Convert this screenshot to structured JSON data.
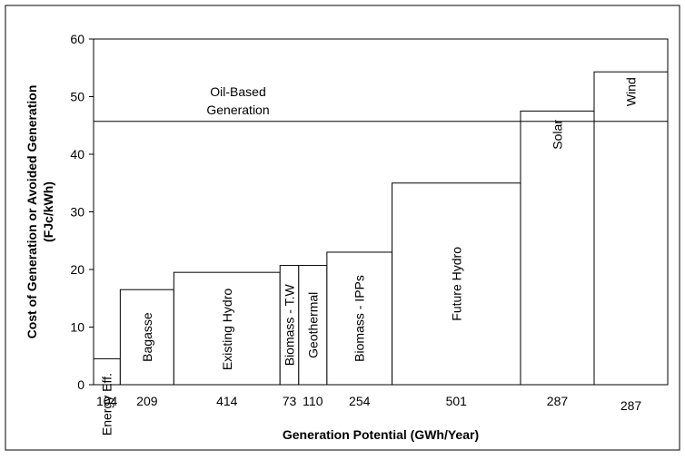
{
  "chart_data": {
    "type": "bar",
    "xlabel": "Generation Potential (GWh/Year)",
    "ylabel_line1": "Cost of Generation or Avoided Generation",
    "ylabel_line2": "(FJc/kWh)",
    "ylim": [
      0,
      60
    ],
    "yticks": [
      0,
      10,
      20,
      30,
      40,
      50,
      60
    ],
    "grid": false,
    "legend": "none",
    "bars": [
      {
        "label": "Energy Eff.",
        "width_gwh": 104,
        "value": 4.5,
        "width_label": "104"
      },
      {
        "label": "Bagasse",
        "width_gwh": 209,
        "value": 16.5,
        "width_label": "209"
      },
      {
        "label": "Existing Hydro",
        "width_gwh": 414,
        "value": 19.5,
        "width_label": "414"
      },
      {
        "label": "Biomass - T.W",
        "width_gwh": 73,
        "value": 20.7,
        "width_label": "73"
      },
      {
        "label": "Geothermal",
        "width_gwh": 110,
        "value": 20.7,
        "width_label": "110"
      },
      {
        "label": "Biomass - IPPs",
        "width_gwh": 254,
        "value": 23.0,
        "width_label": "254"
      },
      {
        "label": "Future Hydro",
        "width_gwh": 501,
        "value": 35.0,
        "width_label": "501"
      },
      {
        "label": "Solar",
        "width_gwh": 287,
        "value": 47.5,
        "width_label": "287"
      },
      {
        "label": "Wind",
        "width_gwh": 287,
        "value": 54.3,
        "width_label": "287"
      }
    ],
    "reference_line": {
      "value": 45.7,
      "label_line1": "Oil-Based",
      "label_line2": "Generation"
    }
  }
}
